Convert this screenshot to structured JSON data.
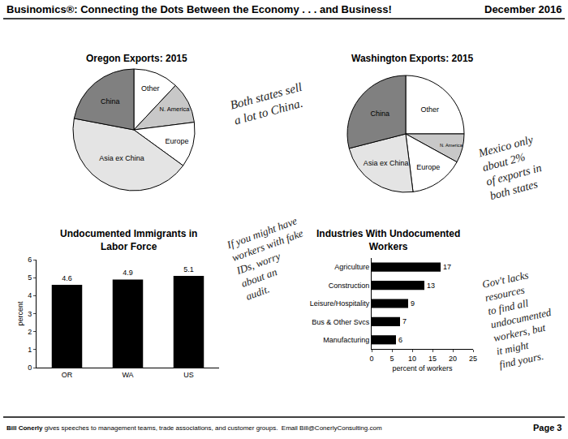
{
  "header": {
    "title": "Businomics®: Connecting the Dots Between the Economy . . . and Business!",
    "date": "December 2016"
  },
  "footer": {
    "author": "Bill Conerly",
    "text": "gives speeches to management teams, trade associations, and customer groups.  Email Bill@ConerlyConsulting.com",
    "page": "Page 3"
  },
  "notes": [
    [
      "Both states sell",
      "a lot to China."
    ],
    [
      "Mexico only",
      "about 2%",
      "of exports in",
      "both states"
    ],
    [
      "If you might have",
      "workers with fake",
      "IDs, worry",
      "about an",
      "audit."
    ],
    [
      "Gov't lacks",
      "resources",
      "to find all",
      "undocumented",
      "workers, but",
      "it might",
      "find yours."
    ]
  ],
  "chart_data": [
    {
      "type": "pie",
      "title": "Oregon Exports: 2015",
      "categories": [
        "Other",
        "N. America",
        "Europe",
        "Asia ex China",
        "China"
      ],
      "values": [
        12,
        11,
        12,
        43,
        22
      ],
      "colors": [
        "#ffffff",
        "#c8c8c8",
        "#ffffff",
        "#e4e4e4",
        "#808080"
      ]
    },
    {
      "type": "pie",
      "title": "Washington Exports: 2015",
      "categories": [
        "Other",
        "N. America",
        "Europe",
        "Asia ex China",
        "China"
      ],
      "values": [
        25,
        8,
        15,
        23,
        29
      ],
      "colors": [
        "#ffffff",
        "#c8c8c8",
        "#ffffff",
        "#e4e4e4",
        "#808080"
      ]
    },
    {
      "type": "bar",
      "title": "Undocumented Immigrants in Labor Force",
      "categories": [
        "OR",
        "WA",
        "US"
      ],
      "values": [
        4.6,
        4.9,
        5.1
      ],
      "color": "#000000",
      "ylabel": "percent",
      "ylim": [
        0,
        6
      ],
      "yticks": [
        0,
        1,
        2,
        3,
        4,
        5,
        6
      ],
      "grid": false,
      "data_labels": true
    },
    {
      "type": "bar",
      "title": "Industries With Undocumented Workers",
      "orientation": "horizontal",
      "categories": [
        "Agriculture",
        "Construction",
        "Leisure/Hospitality",
        "Bus & Other Svcs",
        "Manufacturing"
      ],
      "values": [
        17,
        13,
        9,
        7,
        6
      ],
      "color": "#000000",
      "xlabel": "percent of workers",
      "xlim": [
        0,
        25
      ],
      "xticks": [
        0,
        5,
        10,
        15,
        20,
        25
      ],
      "grid": false,
      "data_labels": true
    }
  ]
}
